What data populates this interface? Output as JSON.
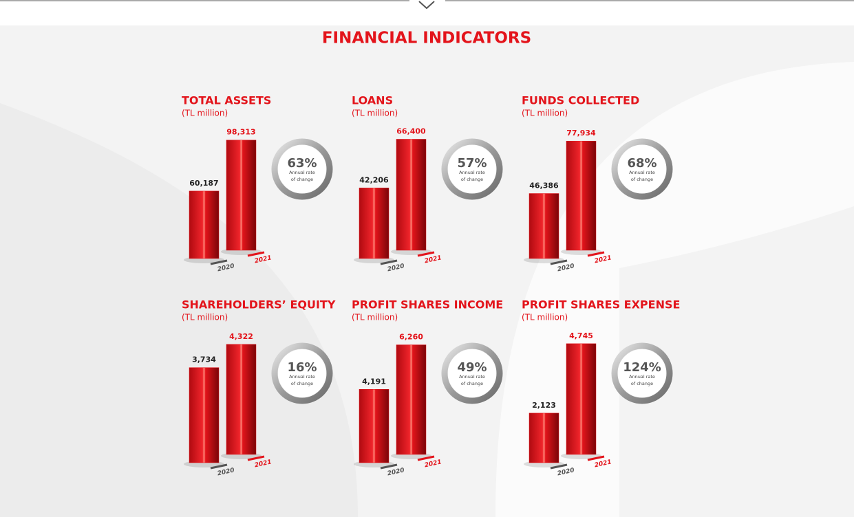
{
  "title": "FINANCIAL INDICATORS",
  "chart_data": [
    {
      "type": "bar",
      "title": "TOTAL ASSETS",
      "subtitle": "(TL million)",
      "categories": [
        "2020",
        "2021"
      ],
      "values": [
        60187,
        98313
      ],
      "value_labels": [
        "60,187",
        "98,313"
      ],
      "ylim": [
        0,
        100000
      ],
      "color": "#e3141b",
      "rate": {
        "value": 63,
        "label": "63%"
      },
      "rate_caption": [
        "Annual rate",
        "of change"
      ]
    },
    {
      "type": "bar",
      "title": "LOANS",
      "subtitle": "(TL million)",
      "categories": [
        "2020",
        "2021"
      ],
      "values": [
        42206,
        66400
      ],
      "value_labels": [
        "42,206",
        "66,400"
      ],
      "ylim": [
        0,
        67000
      ],
      "color": "#e3141b",
      "rate": {
        "value": 57,
        "label": "57%"
      },
      "rate_caption": [
        "Annual rate",
        "of change"
      ]
    },
    {
      "type": "bar",
      "title": "FUNDS COLLECTED",
      "subtitle": "(TL million)",
      "categories": [
        "2020",
        "2021"
      ],
      "values": [
        46386,
        77934
      ],
      "value_labels": [
        "46,386",
        "77,934"
      ],
      "ylim": [
        0,
        80000
      ],
      "color": "#e3141b",
      "rate": {
        "value": 68,
        "label": "68%"
      },
      "rate_caption": [
        "Annual rate",
        "of change"
      ]
    },
    {
      "type": "bar",
      "title": "SHAREHOLDERS’ EQUITY",
      "subtitle": "(TL million)",
      "categories": [
        "2020",
        "2021"
      ],
      "values": [
        3734,
        4322
      ],
      "value_labels": [
        "3,734",
        "4,322"
      ],
      "ylim": [
        0,
        4400
      ],
      "color": "#e3141b",
      "rate": {
        "value": 16,
        "label": "16%"
      },
      "rate_caption": [
        "Annual rate",
        "of change"
      ]
    },
    {
      "type": "bar",
      "title": "PROFIT SHARES INCOME",
      "subtitle": "(TL million)",
      "categories": [
        "2020",
        "2021"
      ],
      "values": [
        4191,
        6260
      ],
      "value_labels": [
        "4,191",
        "6,260"
      ],
      "ylim": [
        0,
        6400
      ],
      "color": "#e3141b",
      "rate": {
        "value": 49,
        "label": "49%"
      },
      "rate_caption": [
        "Annual rate",
        "of change"
      ]
    },
    {
      "type": "bar",
      "title": "PROFIT SHARES EXPENSE",
      "subtitle": "(TL million)",
      "categories": [
        "2020",
        "2021"
      ],
      "values": [
        2123,
        4745
      ],
      "value_labels": [
        "2,123",
        "4,745"
      ],
      "ylim": [
        0,
        4800
      ],
      "color": "#e3141b",
      "rate": {
        "value": 124,
        "label": "124%"
      },
      "rate_caption": [
        "Annual rate",
        "of change"
      ]
    }
  ]
}
